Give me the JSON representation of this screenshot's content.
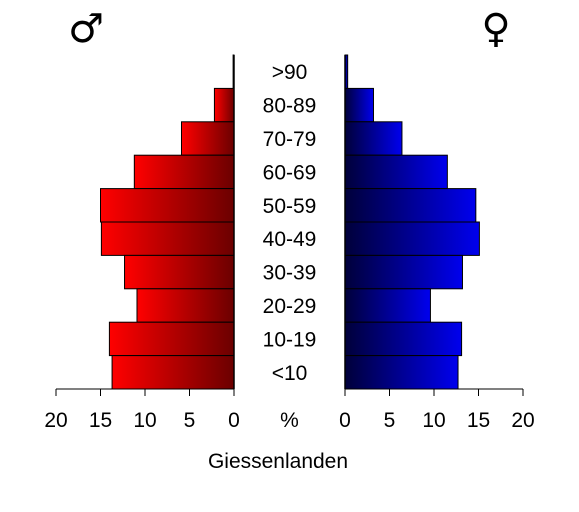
{
  "chart_data": {
    "type": "bar",
    "title": "Giessenlanden",
    "left_symbol": "♂",
    "right_symbol": "♀",
    "categories": [
      ">90",
      "80-89",
      "70-79",
      "60-69",
      "50-59",
      "40-49",
      "30-39",
      "20-29",
      "10-19",
      "<10"
    ],
    "series": [
      {
        "name": "♂",
        "values": [
          0.1,
          2.2,
          5.9,
          11.2,
          15.0,
          14.9,
          12.3,
          10.9,
          14.0,
          13.7
        ]
      },
      {
        "name": "♀",
        "values": [
          0.3,
          3.2,
          6.4,
          11.5,
          14.7,
          15.1,
          13.2,
          9.6,
          13.1,
          12.7
        ]
      }
    ],
    "xlim": [
      0,
      20
    ],
    "ticks": [
      "20",
      "15",
      "10",
      "5",
      "0",
      "%",
      "0",
      "5",
      "10",
      "15",
      "20"
    ],
    "unit_label": "%",
    "colors": {
      "male_light": "#ff0000",
      "male_dark": "#6b0000",
      "female_light": "#0000ee",
      "female_dark": "#00003a"
    },
    "grid": false,
    "legend": "none"
  }
}
